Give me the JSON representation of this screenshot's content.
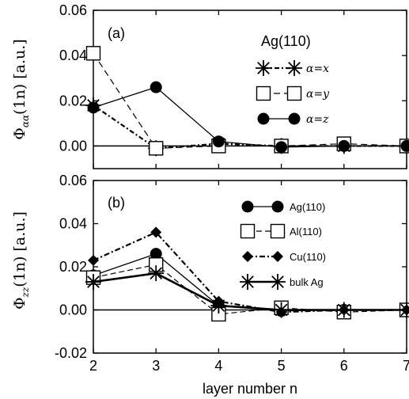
{
  "chart_data": [
    {
      "panel": "(a)",
      "type": "line",
      "ylabel": "Φαα(1n) [a.u.]",
      "ylabel_symbol": "Φ",
      "ylabel_subscript": "αα",
      "ylabel_rest": "(1n) [a.u.]",
      "xlim": [
        2,
        7
      ],
      "ylim": [
        -0.01,
        0.06
      ],
      "yticks": [
        0.0,
        0.02,
        0.04,
        0.06
      ],
      "ytick_labels": [
        "0.00",
        "0.02",
        "0.04",
        "0.06"
      ],
      "zero_line": true,
      "legend_title": "Ag(110)",
      "legend_placement": "top-right",
      "series": [
        {
          "name": "α=x",
          "marker": "asterisk",
          "dash": "6,3,2,3",
          "width": 2.2,
          "x": [
            2,
            3,
            4,
            5,
            6,
            7
          ],
          "y": [
            0.018,
            -0.001,
            0.001,
            0.0,
            0.0,
            0.0
          ]
        },
        {
          "name": "α=y",
          "marker": "open-square",
          "dash": "8,5",
          "width": 1.2,
          "x": [
            2,
            3,
            4,
            5,
            6,
            7
          ],
          "y": [
            0.041,
            -0.001,
            0.0,
            0.0,
            0.001,
            0.0
          ]
        },
        {
          "name": "α=z",
          "marker": "filled-circle",
          "dash": "",
          "width": 1.3,
          "x": [
            2,
            3,
            4,
            5,
            6,
            7
          ],
          "y": [
            0.017,
            0.026,
            0.002,
            -0.0005,
            0.0,
            0.0
          ]
        }
      ]
    },
    {
      "panel": "(b)",
      "type": "line",
      "ylabel": "Φzz(1n) [a.u.]",
      "ylabel_symbol": "Φ",
      "ylabel_subscript": "zz",
      "ylabel_rest": "(1n) [a.u.]",
      "xlabel": "layer number n",
      "xlim": [
        2,
        7
      ],
      "ylim": [
        -0.02,
        0.06
      ],
      "xticks": [
        2,
        3,
        4,
        5,
        6,
        7
      ],
      "xtick_labels": [
        "2",
        "3",
        "4",
        "5",
        "6",
        "7"
      ],
      "yticks": [
        -0.02,
        0.0,
        0.02,
        0.04,
        0.06
      ],
      "ytick_labels": [
        "-0.02",
        "0.00",
        "0.02",
        "0.04",
        "0.06"
      ],
      "zero_line": true,
      "legend_placement": "top-right",
      "series": [
        {
          "name": "Ag(110)",
          "marker": "filled-circle",
          "dash": "",
          "width": 1.3,
          "x": [
            2,
            3,
            4,
            5,
            6,
            7
          ],
          "y": [
            0.016,
            0.026,
            0.002,
            -0.0005,
            0.0,
            0.0
          ]
        },
        {
          "name": "Al(110)",
          "marker": "open-square",
          "dash": "7,4",
          "width": 1.2,
          "x": [
            2,
            3,
            4,
            5,
            6,
            7
          ],
          "y": [
            0.015,
            0.021,
            -0.002,
            0.001,
            -0.001,
            0.0
          ]
        },
        {
          "name": "Cu(110)",
          "marker": "filled-diamond",
          "dash": "7,3,2,3",
          "width": 2.2,
          "x": [
            2,
            3,
            4,
            5,
            6,
            7
          ],
          "y": [
            0.023,
            0.036,
            0.004,
            -0.001,
            0.0,
            0.0
          ]
        },
        {
          "name": "bulk Ag",
          "marker": "asterisk",
          "dash": "",
          "width": 2.6,
          "x": [
            2,
            3,
            4,
            5,
            6,
            7
          ],
          "y": [
            0.013,
            0.017,
            0.002,
            0.0,
            0.0,
            0.0
          ]
        }
      ]
    }
  ]
}
